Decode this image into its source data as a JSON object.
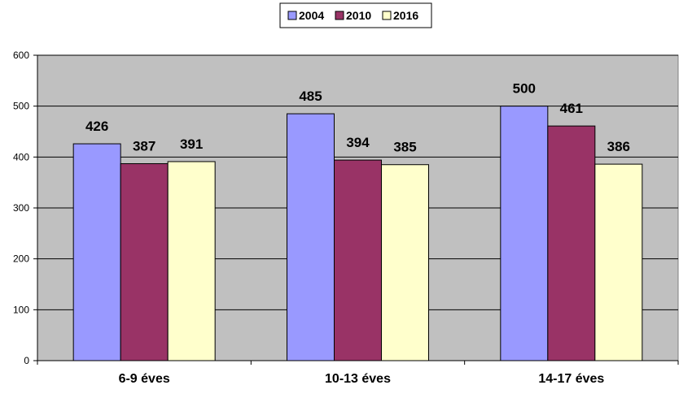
{
  "chart_data": {
    "type": "bar",
    "categories": [
      "6-9 éves",
      "10-13 éves",
      "14-17 éves"
    ],
    "series": [
      {
        "name": "2004",
        "values": [
          426,
          485,
          500
        ],
        "color": "#9999ff"
      },
      {
        "name": "2010",
        "values": [
          387,
          394,
          461
        ],
        "color": "#993366"
      },
      {
        "name": "2016",
        "values": [
          391,
          385,
          386
        ],
        "color": "#ffffcc"
      }
    ],
    "ylim": [
      0,
      600
    ],
    "yticks": [
      "0",
      "100",
      "200",
      "300",
      "400",
      "500",
      "600"
    ],
    "grid": true,
    "legend_position": "top-center",
    "plot_background": "#c0c0c0",
    "title": "",
    "xlabel": "",
    "ylabel": ""
  }
}
